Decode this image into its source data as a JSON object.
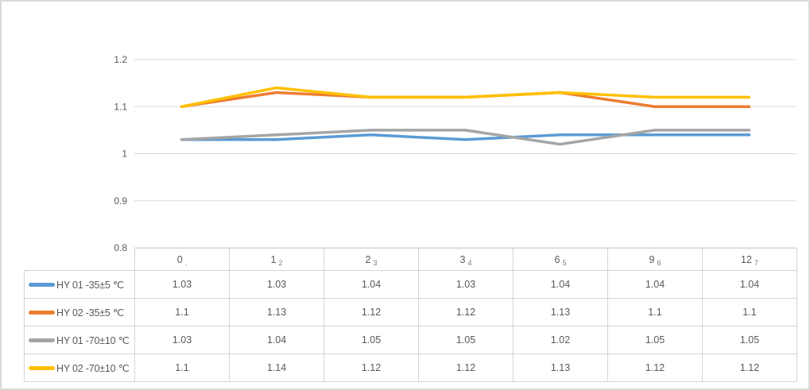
{
  "chart_data": {
    "type": "line",
    "title": "",
    "categories": [
      "0",
      "1",
      "2",
      "3",
      "6",
      "9",
      "12"
    ],
    "category_subs": [
      ".",
      "2",
      "3",
      "4",
      "5",
      "6",
      "7"
    ],
    "series": [
      {
        "name": "HY 01 -35±5 ℃",
        "color": "#5B9BD5",
        "values": [
          1.03,
          1.03,
          1.04,
          1.03,
          1.04,
          1.04,
          1.04
        ]
      },
      {
        "name": "HY 02 -35±5 ℃",
        "color": "#ED7D31",
        "values": [
          1.1,
          1.13,
          1.12,
          1.12,
          1.13,
          1.1,
          1.1
        ]
      },
      {
        "name": "HY 01 -70±10 ℃",
        "color": "#A5A5A5",
        "values": [
          1.03,
          1.04,
          1.05,
          1.05,
          1.02,
          1.05,
          1.05
        ]
      },
      {
        "name": "HY 02 -70±10 ℃",
        "color": "#FFC000",
        "values": [
          1.1,
          1.14,
          1.12,
          1.12,
          1.13,
          1.12,
          1.12
        ]
      }
    ],
    "y_axis": {
      "min": 0.8,
      "max": 1.2,
      "step": 0.1,
      "tick_labels": [
        "1.2",
        "1.1",
        "1",
        "0.9",
        "0.8"
      ],
      "tick_values": [
        1.2,
        1.1,
        1,
        0.9,
        0.8
      ]
    },
    "grid": true,
    "legend_position": "data-table-left-column",
    "data_table_shown": true
  },
  "colors": {
    "frame_border": "#d9d9d9",
    "grid": "#d9d9d9",
    "axis_text": "#595959",
    "table_border": "#d4d4d4",
    "table_text": "#595959"
  }
}
